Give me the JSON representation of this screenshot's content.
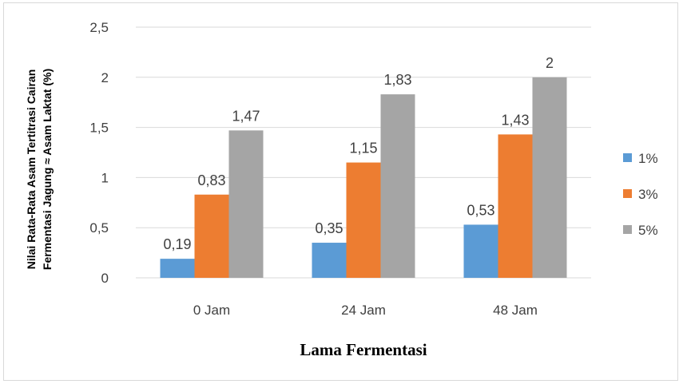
{
  "chart_data": {
    "type": "bar",
    "title": "",
    "categories": [
      "0 Jam",
      "24 Jam",
      "48 Jam"
    ],
    "series": [
      {
        "name": "1%",
        "values": [
          0.19,
          0.35,
          0.53
        ],
        "color": "#5B9BD5"
      },
      {
        "name": "3%",
        "values": [
          0.83,
          1.15,
          1.43
        ],
        "color": "#ED7D31"
      },
      {
        "name": "5%",
        "values": [
          1.47,
          1.83,
          2
        ],
        "color": "#A5A5A5"
      }
    ],
    "data_labels": [
      [
        "0,19",
        "0,35",
        "0,53"
      ],
      [
        "0,83",
        "1,15",
        "1,43"
      ],
      [
        "1,47",
        "1,83",
        "2"
      ]
    ],
    "y_ticks": [
      {
        "value": 0,
        "label": "0"
      },
      {
        "value": 0.5,
        "label": "0,5"
      },
      {
        "value": 1,
        "label": "1"
      },
      {
        "value": 1.5,
        "label": "1,5"
      },
      {
        "value": 2,
        "label": "2"
      },
      {
        "value": 2.5,
        "label": "2,5"
      }
    ],
    "ylim": [
      0,
      2.5
    ],
    "ylabel_line1": "Nilai Rata-Rata Asam Tertitrasi Cairan",
    "ylabel_line2": "Fermentasi Jagung ≈ Asam Laktat (%)",
    "xlabel": "Lama Fermentasi",
    "grid": true,
    "legend_position": "right",
    "gridline_color": "#d9d9d9"
  }
}
